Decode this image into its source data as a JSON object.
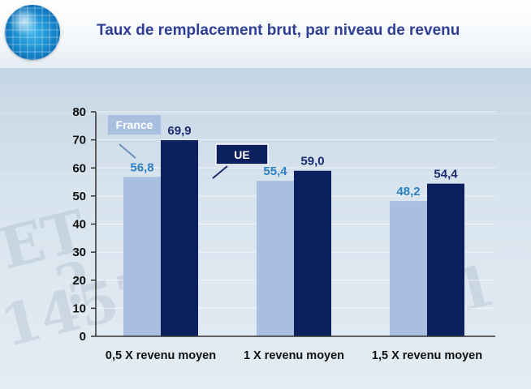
{
  "header": {
    "title": "Taux de remplacement brut, par niveau de revenu"
  },
  "chart_data": {
    "type": "bar",
    "title": "Taux de remplacement brut, par niveau de revenu",
    "categories": [
      "0,5 X revenu moyen",
      "1 X revenu moyen",
      "1,5 X revenu moyen"
    ],
    "series": [
      {
        "name": "France",
        "values": [
          56.8,
          55.4,
          48.2
        ],
        "labels": [
          "56,8",
          "55,4",
          "48,2"
        ],
        "color": "#a9bfe0",
        "label_color": "#2b80c2"
      },
      {
        "name": "UE",
        "values": [
          69.9,
          59.0,
          54.4
        ],
        "labels": [
          "69,9",
          "59,0",
          "54,4"
        ],
        "color": "#0c1f5e",
        "label_color": "#1c2c70"
      }
    ],
    "yticks": [
      0,
      10,
      20,
      30,
      40,
      50,
      60,
      70,
      80
    ],
    "ylim": [
      0,
      80
    ],
    "grid": true,
    "legend": "callout labels near bars",
    "colors": {
      "axis": "#333333",
      "legend_france_bg": "#a9bfe0",
      "legend_ue_bg": "#0c1f5e"
    }
  }
}
